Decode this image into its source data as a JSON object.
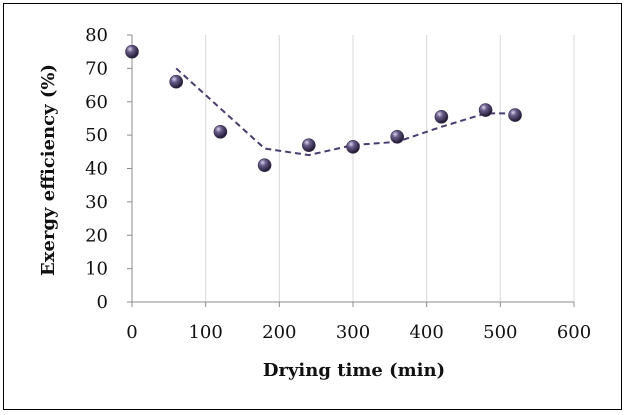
{
  "chart_data": {
    "type": "scatter",
    "title": "",
    "xlabel": "Drying time (min)",
    "ylabel": "Exergy efficiency (%)",
    "xlim": [
      0,
      600
    ],
    "ylim": [
      0,
      80
    ],
    "x_ticks": [
      0,
      100,
      200,
      300,
      400,
      500,
      600
    ],
    "y_ticks": [
      0,
      10,
      20,
      30,
      40,
      50,
      60,
      70,
      80
    ],
    "grid": "vertical",
    "legend": "none",
    "marker_color": "#3a3050",
    "trend_color": "#4b3c70",
    "series": [
      {
        "type": "scatter",
        "x": [
          0,
          60,
          120,
          180,
          240,
          300,
          360,
          420,
          480,
          520
        ],
        "y": [
          75,
          66,
          51,
          41,
          47,
          46.5,
          49.5,
          55.5,
          57.5,
          56
        ]
      },
      {
        "type": "line",
        "style": "dashed",
        "x": [
          60,
          180,
          240,
          300,
          360,
          420,
          480,
          520
        ],
        "y": [
          70,
          46,
          44,
          47,
          48,
          52.5,
          56.5,
          56.5
        ]
      }
    ]
  }
}
